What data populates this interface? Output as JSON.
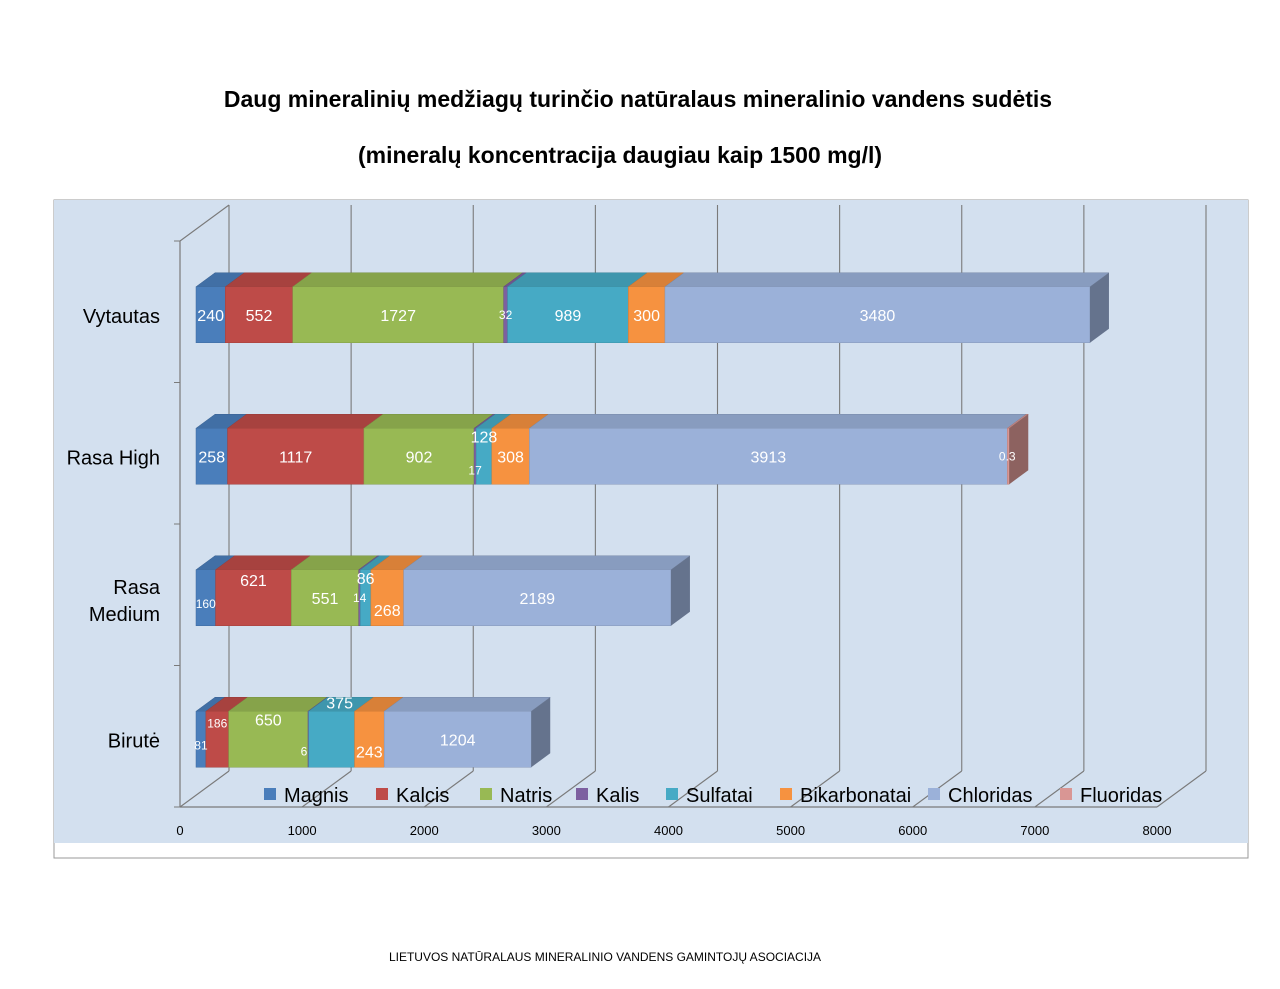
{
  "chart_data": {
    "type": "bar",
    "orientation": "horizontal",
    "stacked": true,
    "style": "3d",
    "title": "Daug mineralinių medžiagų turinčio natūralaus mineralinio vandens sudėtis",
    "subtitle": "(mineralų koncentracija daugiau kaip 1500 mg/l)",
    "xlim": [
      0,
      8000
    ],
    "xticks": [
      "0",
      "1000",
      "2000",
      "3000",
      "4000",
      "5000",
      "6000",
      "7000",
      "8000"
    ],
    "grid": true,
    "legend_position": "bottom",
    "categories": [
      "Vytautas",
      "Rasa High",
      "Rasa Medium",
      "Birutė"
    ],
    "category_lines": [
      [
        "Vytautas"
      ],
      [
        "Rasa High"
      ],
      [
        "Rasa",
        "Medium"
      ],
      [
        "Birutė"
      ]
    ],
    "series": [
      {
        "name": "Magnis",
        "color": "#4a7ebb",
        "values": [
          240,
          258,
          160,
          81
        ],
        "labels": [
          "240",
          "258",
          "160",
          "81"
        ]
      },
      {
        "name": "Kalcis",
        "color": "#be4b48",
        "values": [
          552,
          1117,
          621,
          186
        ],
        "labels": [
          "552",
          "1117",
          "621",
          "186"
        ]
      },
      {
        "name": "Natris",
        "color": "#98b954",
        "values": [
          1727,
          902,
          551,
          650
        ],
        "labels": [
          "1727",
          "902",
          "551",
          "650"
        ]
      },
      {
        "name": "Kalis",
        "color": "#7d60a0",
        "values": [
          32,
          17,
          14,
          6
        ],
        "labels": [
          "32",
          "17",
          "14",
          "6"
        ]
      },
      {
        "name": "Sulfatai",
        "color": "#46aac5",
        "values": [
          989,
          128,
          86,
          375
        ],
        "labels": [
          "989",
          "128",
          "86",
          "375"
        ]
      },
      {
        "name": "Bikarbonatai",
        "color": "#f69240",
        "values": [
          300,
          308,
          268,
          243
        ],
        "labels": [
          "300",
          "308",
          "268",
          "243"
        ]
      },
      {
        "name": "Chloridas",
        "color": "#9bb1d9",
        "values": [
          3480,
          3913,
          2189,
          1204
        ],
        "labels": [
          "3480",
          "3913",
          "2189",
          "1204"
        ]
      },
      {
        "name": "Fluoridas",
        "color": "#d99694",
        "values": [
          0,
          0.3,
          0,
          0
        ],
        "labels": [
          "",
          "0.3",
          "",
          ""
        ]
      }
    ]
  },
  "footer": "LIETUVOS NATŪRALAUS MINERALINIO VANDENS GAMINTOJŲ ASOCIACIJA"
}
